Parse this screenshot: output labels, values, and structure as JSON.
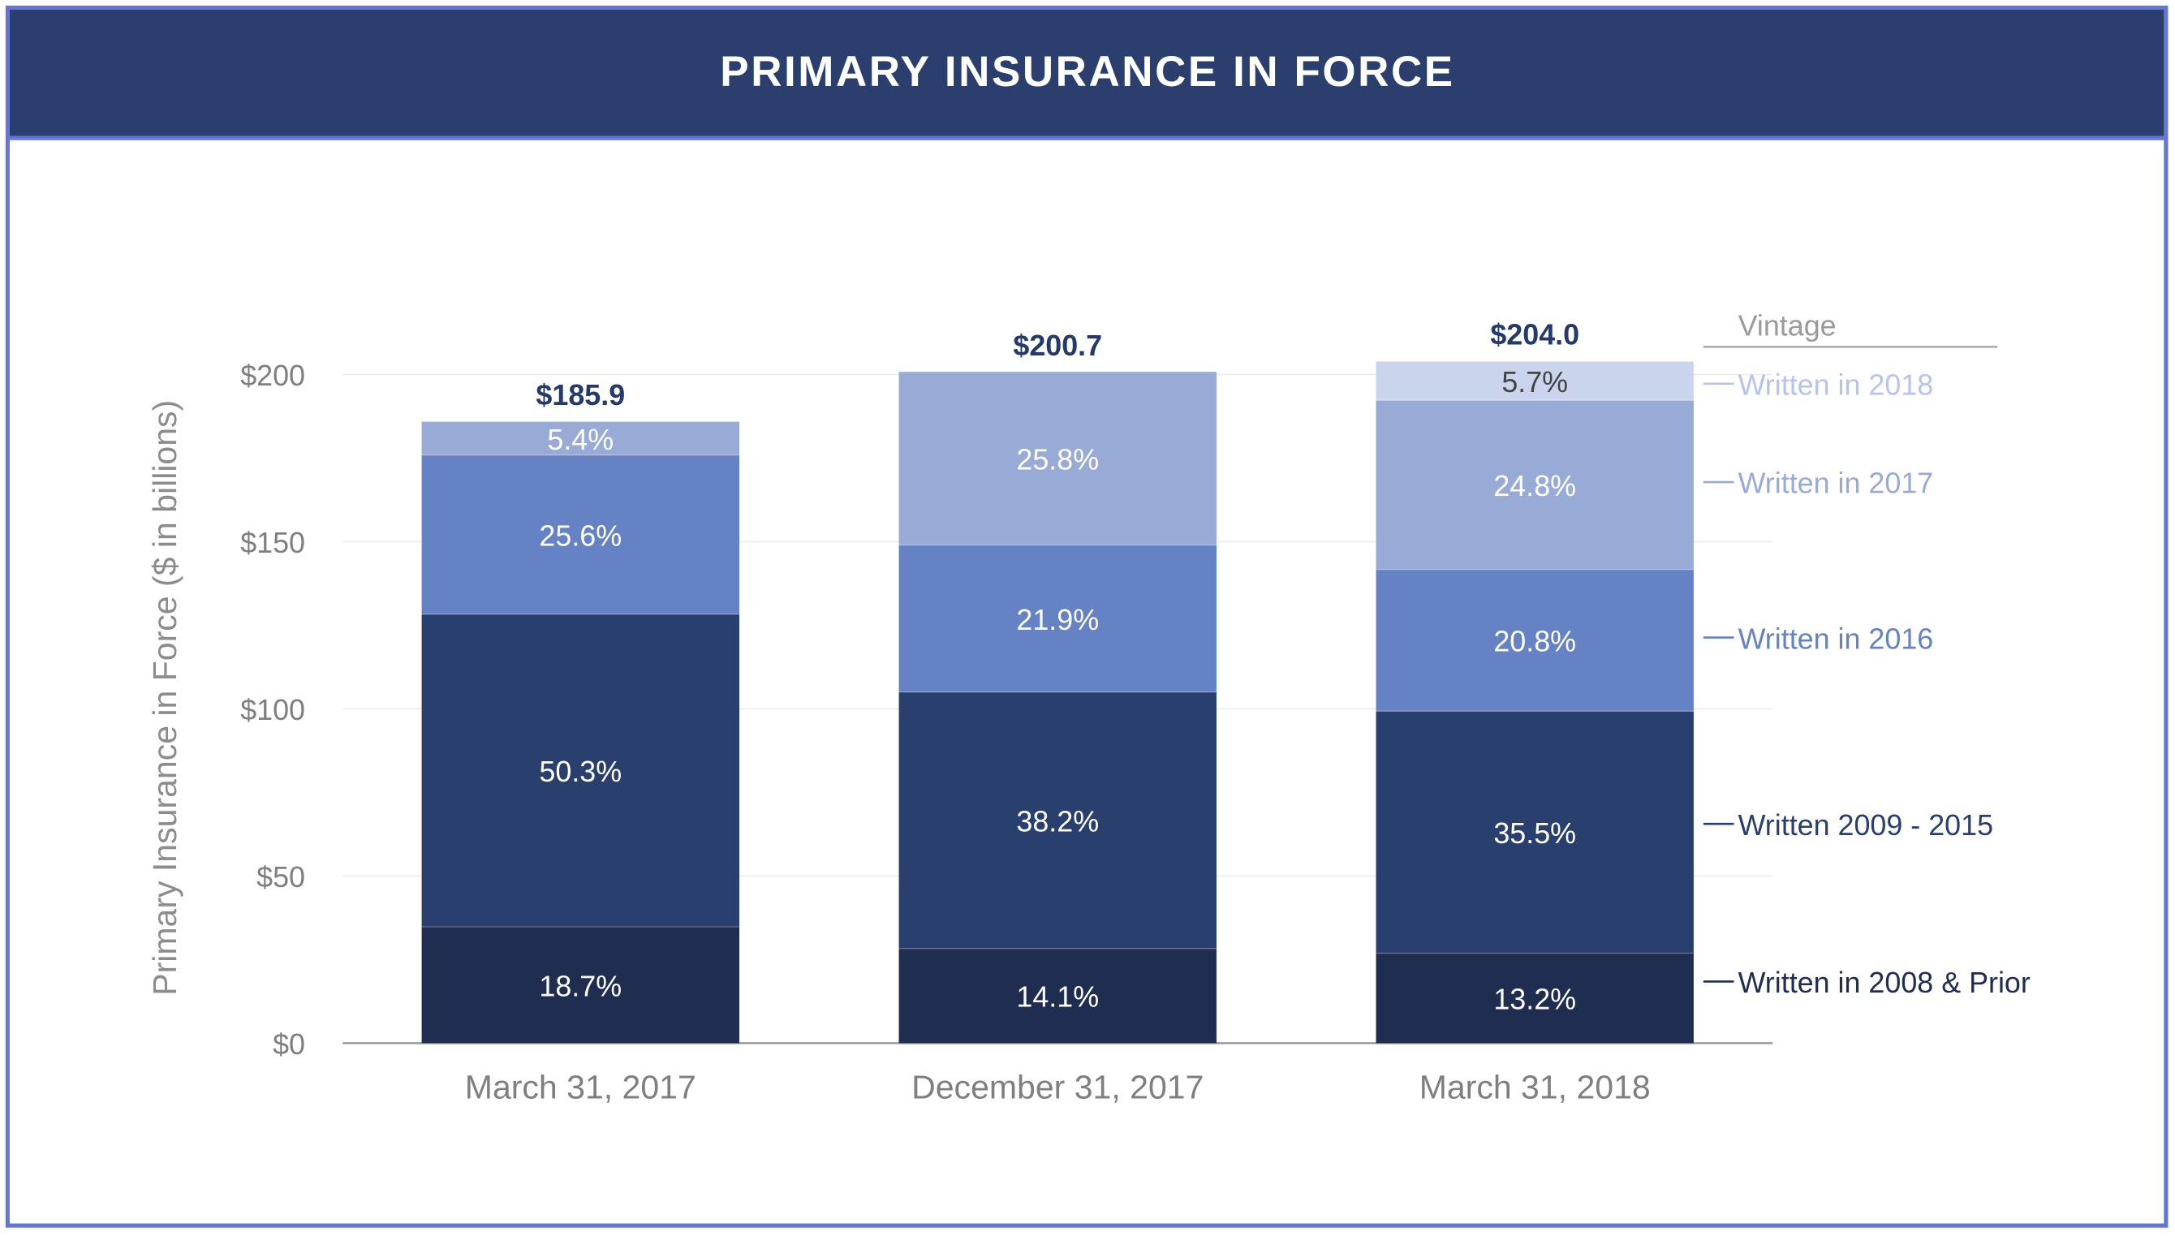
{
  "chart_data": {
    "type": "bar",
    "stacked": true,
    "title": "PRIMARY INSURANCE IN FORCE",
    "ylabel": "Primary Insurance in Force ($ in billions)",
    "xlabel": "",
    "ylim": [
      0,
      200
    ],
    "yticks": [
      0,
      50,
      100,
      150,
      200
    ],
    "ytick_labels": [
      "$0",
      "$50",
      "$100",
      "$150",
      "$200"
    ],
    "grid": true,
    "legend_title": "Vintage",
    "legend_placement": "right",
    "categories": [
      "March 31, 2017",
      "December 31, 2017",
      "March 31, 2018"
    ],
    "totals": [
      185.9,
      200.7,
      204.0
    ],
    "total_labels": [
      "$185.9",
      "$200.7",
      "$204.0"
    ],
    "series": [
      {
        "name": "Written in 2008 & Prior",
        "color": "#1f2d50",
        "label_color": "#ffffff",
        "percent": [
          18.7,
          14.1,
          13.2
        ],
        "values": [
          34.8,
          28.3,
          26.9
        ]
      },
      {
        "name": "Written 2009 - 2015",
        "color": "#293f6e",
        "label_color": "#ffffff",
        "percent": [
          50.3,
          38.2,
          35.5
        ],
        "values": [
          93.5,
          76.7,
          72.4
        ]
      },
      {
        "name": "Written in 2016",
        "color": "#6482c4",
        "label_color": "#ffffff",
        "percent": [
          25.6,
          21.9,
          20.8
        ],
        "values": [
          47.6,
          44.0,
          42.4
        ]
      },
      {
        "name": "Written in 2017",
        "color": "#98abd7",
        "label_color": "#ffffff",
        "percent": [
          5.4,
          25.8,
          24.8
        ],
        "values": [
          10.0,
          51.8,
          50.6
        ]
      },
      {
        "name": "Written in 2018",
        "color": "#cad4ec",
        "label_color": "#444444",
        "legend_color": "#b4c4ee",
        "percent": [
          null,
          null,
          5.7
        ],
        "values": [
          0,
          0,
          11.6
        ]
      }
    ],
    "colors": {
      "header": "#2a3f6d",
      "frame": "#6475d9",
      "total_label": "#233a6b",
      "axis_text": "#7f7f7f"
    }
  }
}
